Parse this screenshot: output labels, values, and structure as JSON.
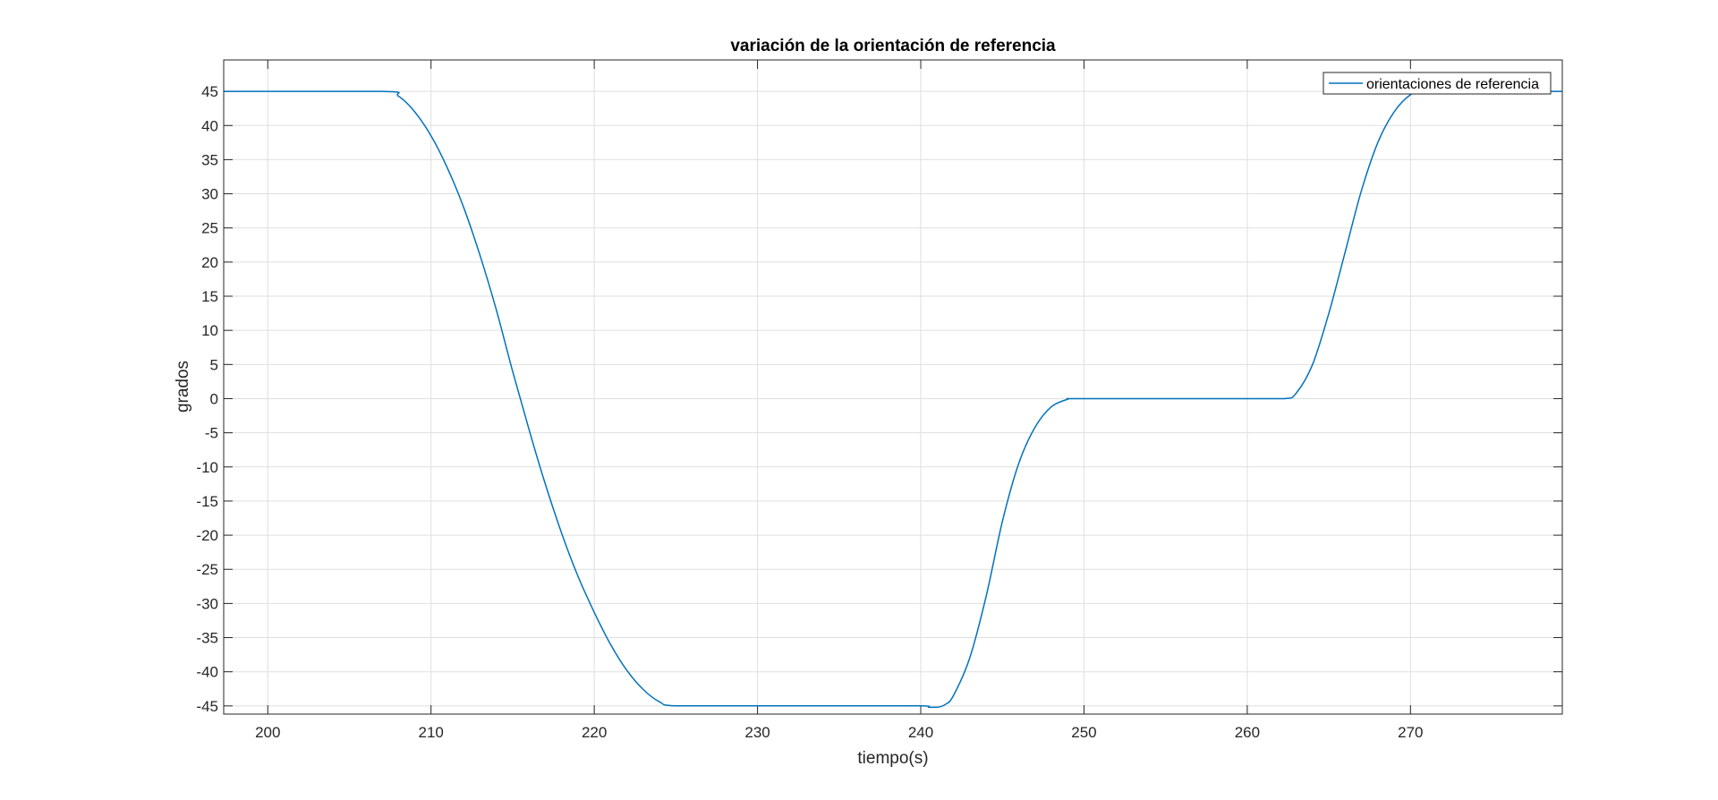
{
  "chart_data": {
    "type": "line",
    "title": "variación de la orientación de referencia",
    "xlabel": "tiempo(s)",
    "ylabel": "grados",
    "xlim": [
      197.3,
      279.3
    ],
    "ylim": [
      -46.2,
      49.6
    ],
    "x_ticks": [
      200,
      210,
      220,
      230,
      240,
      250,
      260,
      270
    ],
    "y_ticks": [
      45,
      40,
      35,
      30,
      25,
      20,
      15,
      10,
      5,
      0,
      -5,
      -10,
      -15,
      -20,
      -25,
      -30,
      -35,
      -40,
      -45
    ],
    "grid": true,
    "legend_position": "top-right",
    "series": [
      {
        "name": "orientaciones de referencia",
        "color": "#0072BD",
        "x": [
          197.3,
          207.0,
          208.0,
          209.0,
          210.0,
          211.0,
          212.0,
          213.0,
          214.0,
          215.0,
          216.0,
          217.0,
          218.0,
          219.0,
          220.0,
          221.0,
          222.0,
          223.0,
          224.0,
          225.0,
          230.0,
          235.0,
          240.0,
          240.5,
          241.0,
          241.5,
          242.0,
          243.0,
          244.0,
          245.0,
          246.0,
          247.0,
          248.0,
          249.0,
          249.5,
          255.0,
          260.0,
          262.3,
          263.0,
          264.0,
          265.0,
          266.0,
          267.0,
          268.0,
          269.0,
          270.0,
          270.8,
          275.0,
          279.3
        ],
        "y": [
          45,
          45,
          44.3,
          42.0,
          38.5,
          33.8,
          28.0,
          21.0,
          13.0,
          4.0,
          -4.5,
          -12.5,
          -19.7,
          -26.0,
          -31.3,
          -36.0,
          -39.8,
          -42.6,
          -44.4,
          -45,
          -45,
          -45,
          -45,
          -45.2,
          -45.2,
          -44.8,
          -43.5,
          -38.0,
          -29.0,
          -18.0,
          -9.5,
          -4.2,
          -1.2,
          -0.1,
          0,
          0,
          0,
          0,
          0.8,
          5.0,
          12.5,
          21.5,
          30.5,
          37.5,
          42.0,
          44.5,
          45,
          45,
          45
        ]
      }
    ]
  }
}
